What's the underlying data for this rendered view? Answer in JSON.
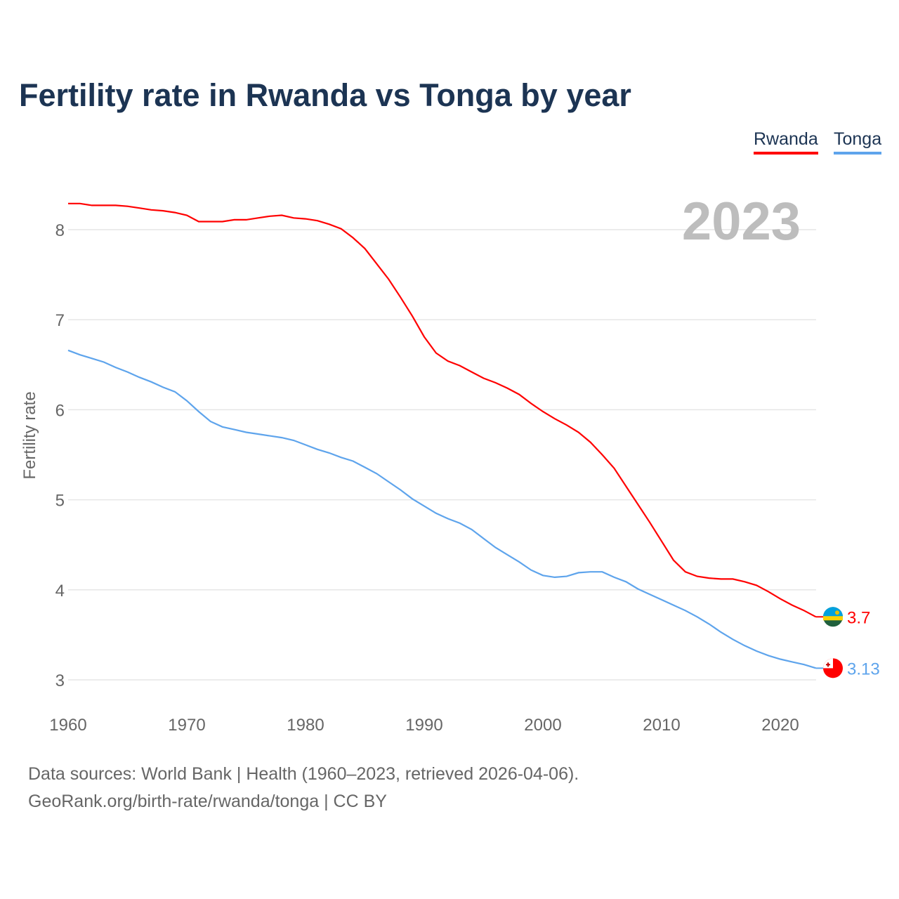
{
  "chart_data": {
    "type": "line",
    "title": "Fertility rate in Rwanda vs Tonga by year",
    "xlabel": "",
    "ylabel": "Fertility rate",
    "xlim": [
      1960,
      2023
    ],
    "ylim": [
      2.7,
      8.5
    ],
    "yticks": [
      3,
      4,
      5,
      6,
      7,
      8
    ],
    "xticks": [
      1960,
      1970,
      1980,
      1990,
      2000,
      2010,
      2020
    ],
    "grid": true,
    "legend_position": "top-right",
    "year_label": "2023",
    "x": [
      1960,
      1961,
      1962,
      1963,
      1964,
      1965,
      1966,
      1967,
      1968,
      1969,
      1970,
      1971,
      1972,
      1973,
      1974,
      1975,
      1976,
      1977,
      1978,
      1979,
      1980,
      1981,
      1982,
      1983,
      1984,
      1985,
      1986,
      1987,
      1988,
      1989,
      1990,
      1991,
      1992,
      1993,
      1994,
      1995,
      1996,
      1997,
      1998,
      1999,
      2000,
      2001,
      2002,
      2003,
      2004,
      2005,
      2006,
      2007,
      2008,
      2009,
      2010,
      2011,
      2012,
      2013,
      2014,
      2015,
      2016,
      2017,
      2018,
      2019,
      2020,
      2021,
      2022,
      2023
    ],
    "series": [
      {
        "name": "Rwanda",
        "color": "#ff0000",
        "end_label": "3.7",
        "values": [
          8.29,
          8.29,
          8.27,
          8.27,
          8.27,
          8.26,
          8.24,
          8.22,
          8.21,
          8.19,
          8.16,
          8.09,
          8.09,
          8.09,
          8.11,
          8.11,
          8.13,
          8.15,
          8.16,
          8.13,
          8.12,
          8.1,
          8.06,
          8.01,
          7.91,
          7.79,
          7.62,
          7.45,
          7.25,
          7.04,
          6.81,
          6.63,
          6.54,
          6.49,
          6.42,
          6.35,
          6.3,
          6.24,
          6.17,
          6.07,
          5.98,
          5.9,
          5.83,
          5.75,
          5.64,
          5.5,
          5.35,
          5.15,
          4.95,
          4.75,
          4.54,
          4.33,
          4.2,
          4.15,
          4.13,
          4.12,
          4.12,
          4.09,
          4.05,
          3.98,
          3.9,
          3.83,
          3.77,
          3.7
        ]
      },
      {
        "name": "Tonga",
        "color": "#5ea4ec",
        "end_label": "3.13",
        "values": [
          6.66,
          6.61,
          6.57,
          6.53,
          6.47,
          6.42,
          6.36,
          6.31,
          6.25,
          6.2,
          6.1,
          5.98,
          5.87,
          5.81,
          5.78,
          5.75,
          5.73,
          5.71,
          5.69,
          5.66,
          5.61,
          5.56,
          5.52,
          5.47,
          5.43,
          5.36,
          5.29,
          5.2,
          5.11,
          5.01,
          4.93,
          4.85,
          4.79,
          4.74,
          4.67,
          4.57,
          4.47,
          4.39,
          4.31,
          4.22,
          4.16,
          4.14,
          4.15,
          4.19,
          4.2,
          4.2,
          4.14,
          4.09,
          4.01,
          3.95,
          3.89,
          3.83,
          3.77,
          3.7,
          3.62,
          3.53,
          3.45,
          3.38,
          3.32,
          3.27,
          3.23,
          3.2,
          3.17,
          3.13
        ]
      }
    ]
  },
  "footer": {
    "line1": "Data sources: World Bank | Health (1960–2023, retrieved 2026-04-06).",
    "line2": "GeoRank.org/birth-rate/rwanda/tonga | CC BY"
  }
}
